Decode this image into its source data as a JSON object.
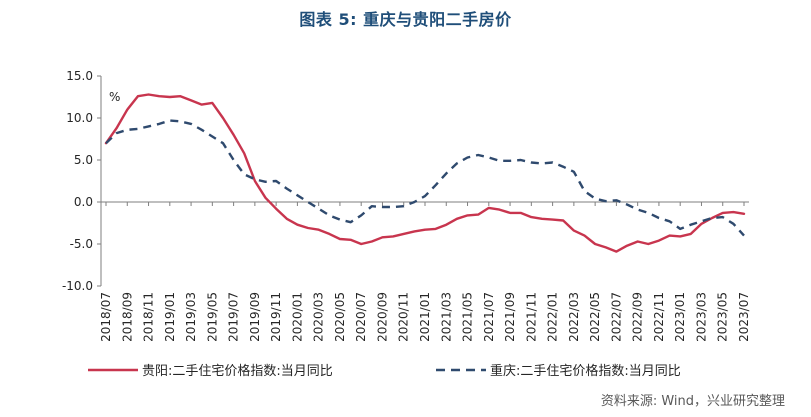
{
  "figure": {
    "title": "图表 5:  重庆与贵阳二手房价",
    "source": "资料来源: Wind，兴业研究整理"
  },
  "chart_data": {
    "type": "line",
    "unit_label": "%",
    "ylim": [
      -10,
      15
    ],
    "yticks": [
      "15.0",
      "10.0",
      "5.0",
      "0.0",
      "-5.0",
      "-10.0"
    ],
    "x": [
      "2018/07",
      "2018/08",
      "2018/09",
      "2018/10",
      "2018/11",
      "2018/12",
      "2019/01",
      "2019/02",
      "2019/03",
      "2019/04",
      "2019/05",
      "2019/06",
      "2019/07",
      "2019/08",
      "2019/09",
      "2019/10",
      "2019/11",
      "2019/12",
      "2020/01",
      "2020/02",
      "2020/03",
      "2020/04",
      "2020/05",
      "2020/06",
      "2020/07",
      "2020/08",
      "2020/09",
      "2020/10",
      "2020/11",
      "2020/12",
      "2021/01",
      "2021/02",
      "2021/03",
      "2021/04",
      "2021/05",
      "2021/06",
      "2021/07",
      "2021/08",
      "2021/09",
      "2021/10",
      "2021/11",
      "2021/12",
      "2022/01",
      "2022/02",
      "2022/03",
      "2022/04",
      "2022/05",
      "2022/06",
      "2022/07",
      "2022/08",
      "2022/09",
      "2022/10",
      "2022/11",
      "2022/12",
      "2023/01",
      "2023/02",
      "2023/03",
      "2023/04",
      "2023/05",
      "2023/06",
      "2023/07"
    ],
    "xtick_labels": [
      "2018/07",
      "2018/09",
      "2018/11",
      "2019/01",
      "2019/03",
      "2019/05",
      "2019/07",
      "2019/09",
      "2019/11",
      "2020/01",
      "2020/03",
      "2020/05",
      "2020/07",
      "2020/09",
      "2020/11",
      "2021/01",
      "2021/03",
      "2021/05",
      "2021/07",
      "2021/09",
      "2021/11",
      "2022/01",
      "2022/03",
      "2022/05",
      "2022/07",
      "2022/09",
      "2022/11",
      "2023/01",
      "2023/03",
      "2023/05",
      "2023/07"
    ],
    "series": [
      {
        "name": "贵阳:二手住宅价格指数:当月同比",
        "color": "#c8354e",
        "style": "solid",
        "values": [
          7.0,
          8.8,
          11.0,
          12.6,
          12.8,
          12.6,
          12.5,
          12.6,
          12.1,
          11.6,
          11.8,
          10.0,
          8.0,
          5.8,
          2.5,
          0.5,
          -0.8,
          -2.0,
          -2.7,
          -3.1,
          -3.3,
          -3.8,
          -4.4,
          -4.5,
          -5.0,
          -4.7,
          -4.2,
          -4.1,
          -3.8,
          -3.5,
          -3.3,
          -3.2,
          -2.7,
          -2.0,
          -1.6,
          -1.5,
          -0.7,
          -0.9,
          -1.3,
          -1.3,
          -1.8,
          -2.0,
          -2.1,
          -2.2,
          -3.4,
          -4.0,
          -5.0,
          -5.4,
          -5.9,
          -5.2,
          -4.7,
          -5.0,
          -4.6,
          -4.0,
          -4.1,
          -3.8,
          -2.6,
          -1.9,
          -1.3,
          -1.2,
          -1.4
        ]
      },
      {
        "name": "重庆:二手住宅价格指数:当月同比",
        "color": "#2f4a6e",
        "style": "dashed",
        "values": [
          7.0,
          8.2,
          8.6,
          8.7,
          9.0,
          9.3,
          9.7,
          9.6,
          9.3,
          8.6,
          7.8,
          7.0,
          5.0,
          3.3,
          2.7,
          2.4,
          2.5,
          1.6,
          0.8,
          0.0,
          -0.8,
          -1.6,
          -2.1,
          -2.4,
          -1.6,
          -0.5,
          -0.6,
          -0.6,
          -0.5,
          0.0,
          0.7,
          2.0,
          3.4,
          4.6,
          5.3,
          5.6,
          5.3,
          4.9,
          4.9,
          5.0,
          4.7,
          4.6,
          4.7,
          4.2,
          3.6,
          1.3,
          0.4,
          0.1,
          0.2,
          -0.3,
          -0.9,
          -1.3,
          -1.9,
          -2.3,
          -3.2,
          -2.7,
          -2.3,
          -1.9,
          -1.8,
          -2.6,
          -4.0
        ]
      }
    ],
    "legend": "bottom",
    "grid": false
  }
}
